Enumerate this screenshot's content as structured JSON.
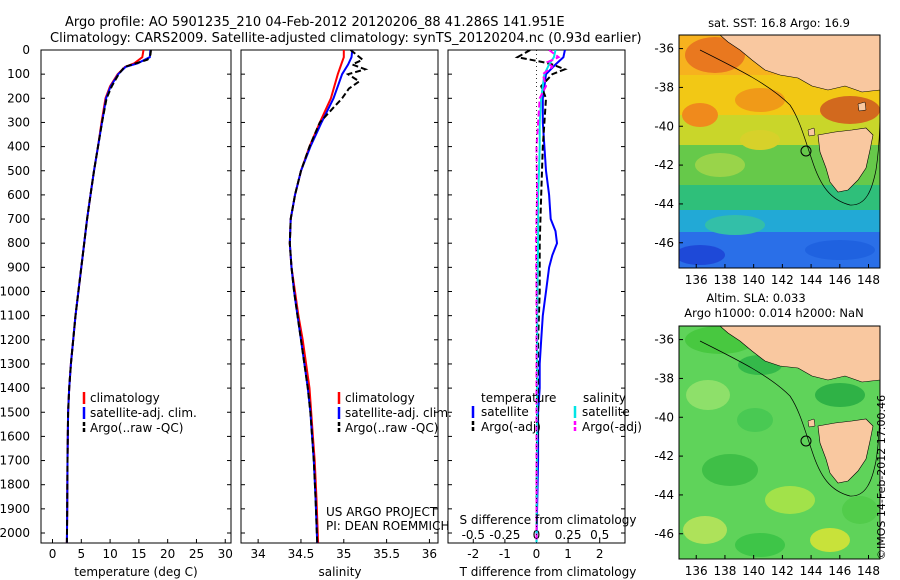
{
  "header": {
    "line1": "Argo profile: AO 5901235_210 04-Feb-2012 20120206_88 41.286S 141.951E",
    "line2": "Climatology: CARS2009. Satellite-adjusted climatology: synTS_20120204.nc (0.93d earlier)"
  },
  "depth_ticks": [
    "0",
    "100",
    "200",
    "300",
    "400",
    "500",
    "600",
    "700",
    "800",
    "900",
    "1000",
    "1100",
    "1200",
    "1300",
    "1400",
    "1500",
    "1600",
    "1700",
    "1800",
    "1900",
    "2000"
  ],
  "colors": {
    "climatology": "#ff0000",
    "satellite": "#0000ff",
    "argo": "#000000",
    "sal_satellite": "#00e5e5",
    "sal_argo": "#ff00ff"
  },
  "panel_temp": {
    "xlabel": "temperature (deg C)",
    "xticks": [
      "0",
      "5",
      "10",
      "15",
      "20",
      "25",
      "30"
    ],
    "legend": [
      "climatology",
      "satellite-adj. clim.",
      "Argo(..raw -QC)"
    ]
  },
  "panel_sal": {
    "xlabel": "salinity",
    "xticks": [
      "34",
      "34.5",
      "35",
      "35.5",
      "36"
    ],
    "legend": [
      "climatology",
      "satellite-adj. clim.",
      "Argo(..raw -QC)"
    ],
    "note1": "US ARGO PROJECT",
    "note2": "PI: DEAN ROEMMICH"
  },
  "panel_diff": {
    "xlabel": "T difference from climatology",
    "top_label": "S difference from climatology",
    "xticks_T": [
      "-2",
      "-1",
      "0",
      "1",
      "2"
    ],
    "xticks_S": [
      "-0.5",
      "-0.25",
      "0",
      "0.25",
      "0.5"
    ],
    "legend_t_title": "temperature",
    "legend_s_title": "salinity",
    "legend_t": [
      "satellite",
      "Argo(-adj)"
    ],
    "legend_s": [
      "satellite",
      "Argo(-adj)"
    ]
  },
  "map_sst": {
    "title": "sat. SST: 16.8 Argo: 16.9",
    "lat_ticks": [
      "-36",
      "-38",
      "-40",
      "-42",
      "-44",
      "-46"
    ],
    "lon_ticks": [
      "136",
      "138",
      "140",
      "142",
      "144",
      "146",
      "148"
    ]
  },
  "map_sla": {
    "title1": "Altim. SLA: 0.033",
    "title2": "Argo h1000: 0.014 h2000: NaN",
    "lat_ticks": [
      "-36",
      "-38",
      "-40",
      "-42",
      "-44",
      "-46"
    ],
    "lon_ticks": [
      "136",
      "138",
      "140",
      "142",
      "144",
      "146",
      "148"
    ]
  },
  "side_text": "©IMOS 14-Feb-2012 17:00:46",
  "chart_data": [
    {
      "type": "line",
      "name": "temperature profile",
      "xlabel": "temperature (deg C)",
      "ylabel": "",
      "xlim": [
        -2,
        31
      ],
      "ylim": [
        2050,
        0
      ],
      "series": [
        {
          "name": "climatology",
          "x": [
            15.8,
            15.6,
            14.2,
            12.6,
            11.3,
            10.0,
            9.2,
            8.5,
            7.9,
            7.2,
            6.6,
            6.0,
            5.5,
            5.0,
            4.5,
            4.0,
            3.6,
            3.2,
            2.9,
            2.7,
            2.6,
            2.55,
            2.5
          ],
          "y": [
            0,
            30,
            55,
            70,
            100,
            150,
            200,
            300,
            400,
            500,
            600,
            700,
            800,
            900,
            1000,
            1100,
            1200,
            1300,
            1400,
            1500,
            1700,
            1900,
            2040
          ]
        },
        {
          "name": "satellite-adj. clim.",
          "x": [
            17.0,
            16.9,
            14.8,
            12.7,
            11.4,
            10.1,
            9.3,
            8.6,
            7.9,
            7.2,
            6.6,
            6.0,
            5.5,
            5.0,
            4.5,
            4.0,
            3.6,
            3.2,
            2.9,
            2.7,
            2.6,
            2.55,
            2.5
          ],
          "y": [
            0,
            30,
            55,
            70,
            100,
            150,
            200,
            300,
            400,
            500,
            600,
            700,
            800,
            900,
            1000,
            1100,
            1200,
            1300,
            1400,
            1500,
            1700,
            1900,
            2040
          ]
        },
        {
          "name": "Argo(..raw -QC)",
          "x": [
            17.1,
            17.0,
            16.5,
            14.5,
            12.5,
            11.5,
            10.3,
            9.4,
            8.6,
            7.9,
            7.2,
            6.6,
            6.0,
            5.5,
            5.0,
            4.5,
            4.0,
            3.6,
            3.2,
            2.9,
            2.7,
            2.6,
            2.55,
            2.5
          ],
          "y": [
            0,
            20,
            40,
            55,
            70,
            100,
            150,
            200,
            300,
            400,
            500,
            600,
            700,
            800,
            900,
            1000,
            1100,
            1200,
            1300,
            1400,
            1500,
            1700,
            1900,
            2040
          ]
        }
      ]
    },
    {
      "type": "line",
      "name": "salinity profile",
      "xlabel": "salinity",
      "ylabel": "",
      "xlim": [
        33.8,
        36.1
      ],
      "ylim": [
        2050,
        0
      ],
      "series": [
        {
          "name": "climatology",
          "x": [
            35.0,
            35.0,
            34.97,
            34.93,
            34.85,
            34.72,
            34.6,
            34.5,
            34.43,
            34.38,
            34.37,
            34.39,
            34.43,
            34.47,
            34.52,
            34.56,
            34.6,
            34.62,
            34.64,
            34.66,
            34.68,
            34.7
          ],
          "y": [
            0,
            30,
            60,
            100,
            200,
            300,
            400,
            500,
            600,
            700,
            800,
            900,
            1000,
            1100,
            1200,
            1300,
            1400,
            1500,
            1600,
            1700,
            1850,
            2040
          ]
        },
        {
          "name": "satellite-adj. clim.",
          "x": [
            35.1,
            35.09,
            35.05,
            34.98,
            34.88,
            34.74,
            34.61,
            34.5,
            34.43,
            34.38,
            34.37,
            34.39,
            34.42,
            34.46,
            34.5,
            34.54,
            34.58,
            34.61,
            34.63,
            34.65,
            34.67,
            34.69
          ],
          "y": [
            0,
            30,
            60,
            100,
            200,
            300,
            400,
            500,
            600,
            700,
            800,
            900,
            1000,
            1100,
            1200,
            1300,
            1400,
            1500,
            1600,
            1700,
            1850,
            2040
          ]
        },
        {
          "name": "Argo(..raw -QC)",
          "x": [
            35.08,
            35.22,
            35.1,
            35.25,
            35.05,
            35.18,
            35.06,
            34.98,
            34.85,
            34.72,
            34.6,
            34.5,
            34.43,
            34.38,
            34.37,
            34.39,
            34.42,
            34.46,
            34.5,
            34.54,
            34.58,
            34.61,
            34.63,
            34.65,
            34.67,
            34.69
          ],
          "y": [
            0,
            40,
            60,
            80,
            100,
            130,
            160,
            200,
            250,
            300,
            400,
            500,
            600,
            700,
            800,
            900,
            1000,
            1100,
            1200,
            1300,
            1400,
            1500,
            1600,
            1700,
            1850,
            2040
          ]
        }
      ]
    },
    {
      "type": "line",
      "name": "difference profile",
      "xlabel": "T difference from climatology",
      "ylabel": "",
      "xlim": [
        -2.8,
        2.8
      ],
      "ylim": [
        2050,
        0
      ],
      "series": [
        {
          "name": "temperature satellite",
          "x": [
            0.9,
            0.85,
            0.6,
            0.3,
            0.25,
            0.2,
            0.2,
            0.25,
            0.3,
            0.4,
            0.45,
            0.6,
            0.65,
            0.5,
            0.4,
            0.3,
            0.2,
            0.15,
            0.1,
            0.1,
            0.05,
            0.05,
            0.02,
            0.0
          ],
          "y": [
            0,
            30,
            60,
            100,
            150,
            200,
            300,
            400,
            500,
            600,
            700,
            750,
            800,
            850,
            900,
            1000,
            1100,
            1200,
            1300,
            1400,
            1500,
            1700,
            1900,
            2040
          ]
        },
        {
          "name": "temperature Argo(-adj)",
          "x": [
            -0.2,
            -0.6,
            0.2,
            0.5,
            0.9,
            0.5,
            0.15,
            0.3,
            0.25,
            0.2,
            0.15,
            0.1,
            0.1,
            0.05,
            0.05,
            0.0,
            0.0
          ],
          "y": [
            0,
            30,
            50,
            60,
            80,
            100,
            150,
            200,
            300,
            400,
            600,
            800,
            1000,
            1200,
            1500,
            1800,
            2040
          ]
        },
        {
          "name": "salinity satellite",
          "x": [
            0.6,
            0.55,
            0.4,
            0.25,
            0.2,
            0.15,
            0.1,
            0.1,
            0.08,
            0.05,
            0.05,
            0.03,
            0.02,
            0.02,
            0.01,
            0.0
          ],
          "y": [
            0,
            30,
            60,
            100,
            150,
            200,
            300,
            400,
            500,
            600,
            800,
            1000,
            1200,
            1500,
            1800,
            2040
          ]
        },
        {
          "name": "salinity Argo(-adj)",
          "x": [
            0.4,
            0.7,
            0.35,
            0.5,
            0.2,
            0.3,
            0.1,
            0.05,
            0.0,
            0.02,
            -0.02,
            0.0,
            0.0,
            0.0,
            0.0,
            0.0
          ],
          "y": [
            0,
            30,
            50,
            70,
            100,
            150,
            200,
            300,
            400,
            600,
            800,
            1000,
            1200,
            1500,
            1800,
            2040
          ]
        }
      ]
    }
  ]
}
